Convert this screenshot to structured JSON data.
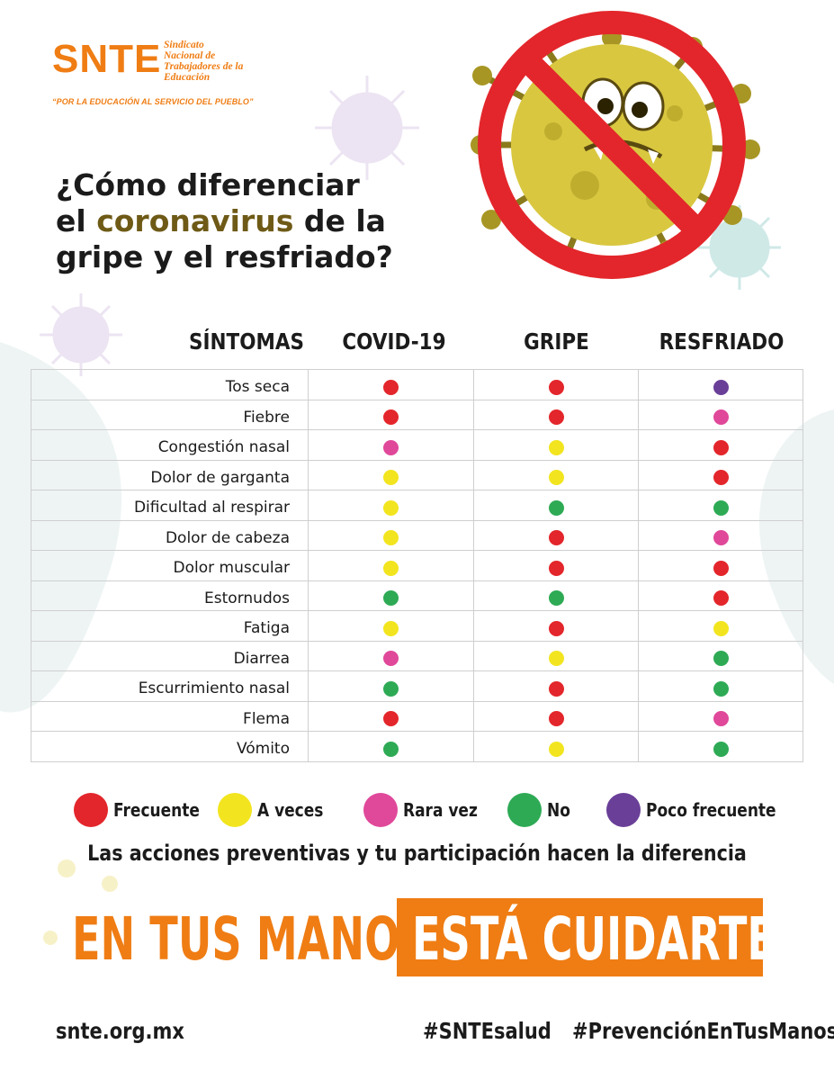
{
  "logo": {
    "mark": "SNTE",
    "name_lines": [
      "Sindicato",
      "Nacional de",
      "Trabajadores de la",
      "Educación"
    ],
    "slogan": "“POR LA EDUCACIÓN AL SERVICIO DEL PUEBLO”"
  },
  "title": {
    "line1": "¿Cómo diferenciar",
    "line2_pre": "el ",
    "line2_highlight": "coronavirus",
    "line2_post": " de la",
    "line3": "gripe y el resfriado?"
  },
  "table": {
    "headers": {
      "symptom": "SÍNTOMAS",
      "covid": "COVID-19",
      "gripe": "GRIPE",
      "resfriado": "RESFRIADO"
    },
    "rows": [
      {
        "symptom": "Tos seca",
        "covid": "frecuente",
        "gripe": "frecuente",
        "resfriado": "poco_frecuente"
      },
      {
        "symptom": "Fiebre",
        "covid": "frecuente",
        "gripe": "frecuente",
        "resfriado": "rara_vez"
      },
      {
        "symptom": "Congestión nasal",
        "covid": "rara_vez",
        "gripe": "a_veces",
        "resfriado": "frecuente"
      },
      {
        "symptom": "Dolor de garganta",
        "covid": "a_veces",
        "gripe": "a_veces",
        "resfriado": "frecuente"
      },
      {
        "symptom": "Dificultad al respirar",
        "covid": "a_veces",
        "gripe": "no",
        "resfriado": "no"
      },
      {
        "symptom": "Dolor de cabeza",
        "covid": "a_veces",
        "gripe": "frecuente",
        "resfriado": "rara_vez"
      },
      {
        "symptom": "Dolor muscular",
        "covid": "a_veces",
        "gripe": "frecuente",
        "resfriado": "frecuente"
      },
      {
        "symptom": "Estornudos",
        "covid": "no",
        "gripe": "no",
        "resfriado": "frecuente"
      },
      {
        "symptom": "Fatiga",
        "covid": "a_veces",
        "gripe": "frecuente",
        "resfriado": "a_veces"
      },
      {
        "symptom": "Diarrea",
        "covid": "rara_vez",
        "gripe": "a_veces",
        "resfriado": "no"
      },
      {
        "symptom": "Escurrimiento nasal",
        "covid": "no",
        "gripe": "frecuente",
        "resfriado": "no"
      },
      {
        "symptom": "Flema",
        "covid": "frecuente",
        "gripe": "frecuente",
        "resfriado": "rara_vez"
      },
      {
        "symptom": "Vómito",
        "covid": "no",
        "gripe": "a_veces",
        "resfriado": "no"
      }
    ]
  },
  "legend": [
    {
      "key": "frecuente",
      "label": "Frecuente",
      "color": "#e3262b"
    },
    {
      "key": "a_veces",
      "label": "A veces",
      "color": "#f2e51f"
    },
    {
      "key": "rara_vez",
      "label": "Rara vez",
      "color": "#e0489a"
    },
    {
      "key": "no",
      "label": "No",
      "color": "#2eaa55"
    },
    {
      "key": "poco_frecuente",
      "label": "Poco frecuente",
      "color": "#6a3f98"
    }
  ],
  "tagline": "Las acciones preventivas y tu participación hacen la diferencia",
  "slogan": {
    "left": "EN TUS MANOS",
    "right": "ESTÁ CUIDARTE"
  },
  "footer": {
    "site": "snte.org.mx",
    "hashtag1": "#SNTEsalud",
    "hashtag2": "#PrevenciónEnTusManos"
  },
  "colors": {
    "orange": "#ef7d14",
    "title_highlight": "#6e5a16",
    "stop_red": "#e3262b",
    "virus_yellow": "#d9c740"
  },
  "icons": {
    "hero": "virus-stop-sign-icon"
  }
}
